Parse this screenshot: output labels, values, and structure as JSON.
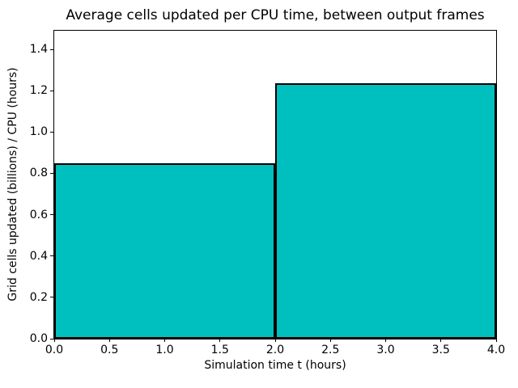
{
  "figure": {
    "background_color": "#ffffff",
    "text_color": "#000000"
  },
  "chart_data": {
    "type": "bar",
    "title": "Average cells updated per CPU time, between output frames",
    "xlabel": "Simulation time t (hours)",
    "ylabel": "Grid cells updated (billions) / CPU (hours)",
    "bars": [
      {
        "x_start": 0.0,
        "x_end": 2.0,
        "value": 0.85
      },
      {
        "x_start": 2.0,
        "x_end": 4.0,
        "value": 1.235
      }
    ],
    "categories": [
      "0-2 hours",
      "2-4 hours"
    ],
    "values": [
      0.85,
      1.235
    ],
    "xlim": [
      0.0,
      4.0
    ],
    "ylim": [
      0.0,
      1.49
    ],
    "xticks": [
      0.0,
      0.5,
      1.0,
      1.5,
      2.0,
      2.5,
      3.0,
      3.5,
      4.0
    ],
    "yticks": [
      0.0,
      0.2,
      0.4,
      0.6,
      0.8,
      1.0,
      1.2,
      1.4
    ],
    "tick_label_format_decimals": 1,
    "bar_fill_color": "#00bfbf",
    "bar_edge_color": "#000000",
    "grid": false,
    "legend": null
  }
}
